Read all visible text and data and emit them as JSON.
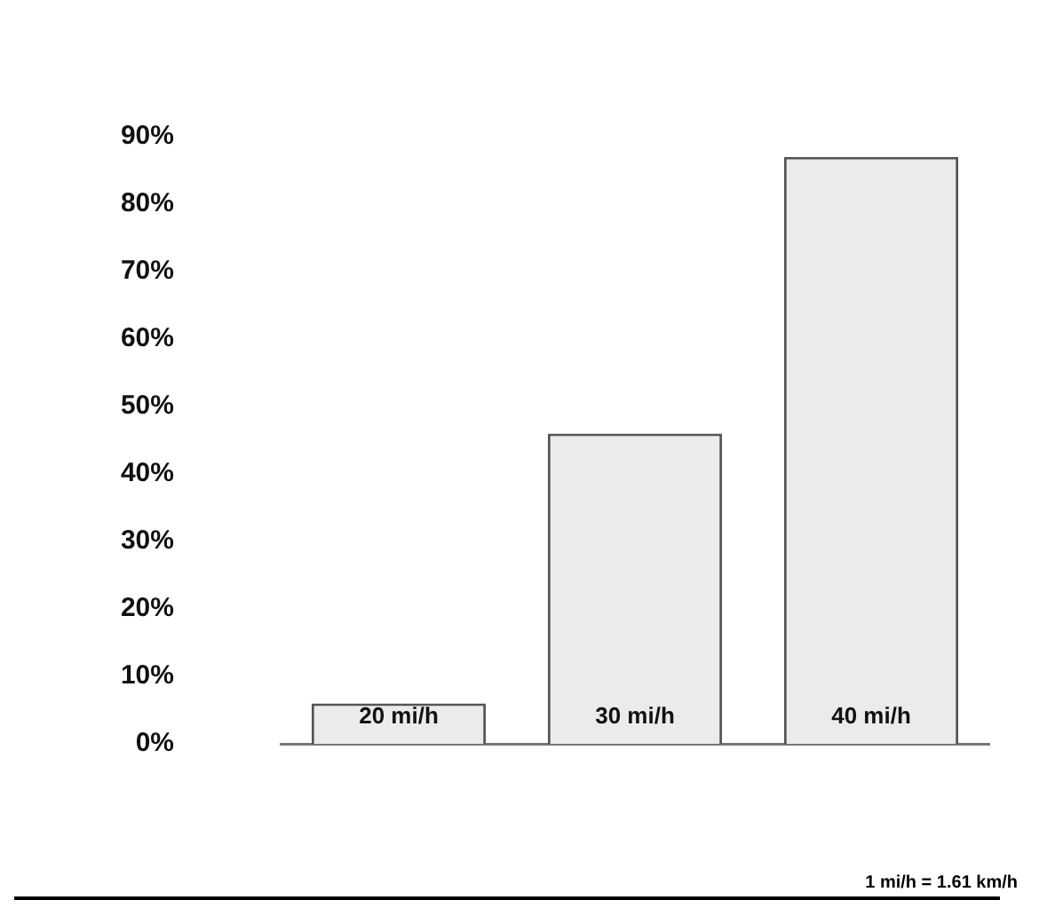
{
  "chart_data": {
    "type": "bar",
    "categories": [
      "20 mi/h",
      "30 mi/h",
      "40 mi/h"
    ],
    "values": [
      6,
      46,
      87
    ],
    "color": "#ebebeb",
    "ylim": [
      0,
      90
    ],
    "yticks": [
      {
        "value": 0,
        "label": "0%"
      },
      {
        "value": 10,
        "label": "10%"
      },
      {
        "value": 20,
        "label": "20%"
      },
      {
        "value": 30,
        "label": "30%"
      },
      {
        "value": 40,
        "label": "40%"
      },
      {
        "value": 50,
        "label": "50%"
      },
      {
        "value": 60,
        "label": "60%"
      },
      {
        "value": 70,
        "label": "70%"
      },
      {
        "value": 80,
        "label": "80%"
      },
      {
        "value": 90,
        "label": "90%"
      }
    ],
    "grid": false,
    "annotations": [
      "1 mi/h = 1.61 km/h"
    ]
  }
}
